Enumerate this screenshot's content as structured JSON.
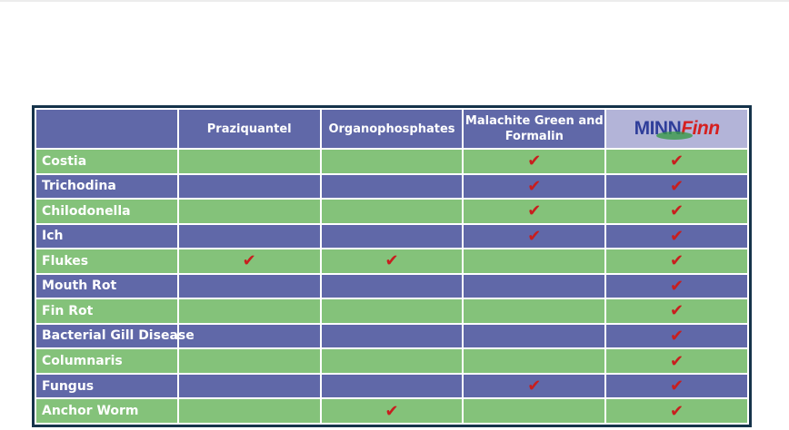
{
  "headers": {
    "col1": "",
    "col2": "Praziquantel",
    "col3": "Organophosphates",
    "col4_line1": "Malachite Green and",
    "col4_line2": "Formalin",
    "logo_part1": "MINN",
    "logo_part2": "Finn"
  },
  "check_glyph": "✔",
  "colors": {
    "green_row": "#84c27a",
    "blue_row": "#6068a8",
    "check": "#c81e1e",
    "frame": "#15334a"
  },
  "rows": [
    {
      "disease": "Costia",
      "praziquantel": false,
      "organophosphates": false,
      "malachite": true,
      "minnfinn": true
    },
    {
      "disease": "Trichodina",
      "praziquantel": false,
      "organophosphates": false,
      "malachite": true,
      "minnfinn": true
    },
    {
      "disease": "Chilodonella",
      "praziquantel": false,
      "organophosphates": false,
      "malachite": true,
      "minnfinn": true
    },
    {
      "disease": "Ich",
      "praziquantel": false,
      "organophosphates": false,
      "malachite": true,
      "minnfinn": true
    },
    {
      "disease": "Flukes",
      "praziquantel": true,
      "organophosphates": true,
      "malachite": false,
      "minnfinn": true
    },
    {
      "disease": "Mouth Rot",
      "praziquantel": false,
      "organophosphates": false,
      "malachite": false,
      "minnfinn": true
    },
    {
      "disease": "Fin Rot",
      "praziquantel": false,
      "organophosphates": false,
      "malachite": false,
      "minnfinn": true
    },
    {
      "disease": "Bacterial Gill Disease",
      "praziquantel": false,
      "organophosphates": false,
      "malachite": false,
      "minnfinn": true
    },
    {
      "disease": "Columnaris",
      "praziquantel": false,
      "organophosphates": false,
      "malachite": false,
      "minnfinn": true
    },
    {
      "disease": "Fungus",
      "praziquantel": false,
      "organophosphates": false,
      "malachite": true,
      "minnfinn": true
    },
    {
      "disease": "Anchor Worm",
      "praziquantel": false,
      "organophosphates": true,
      "malachite": false,
      "minnfinn": true
    }
  ]
}
